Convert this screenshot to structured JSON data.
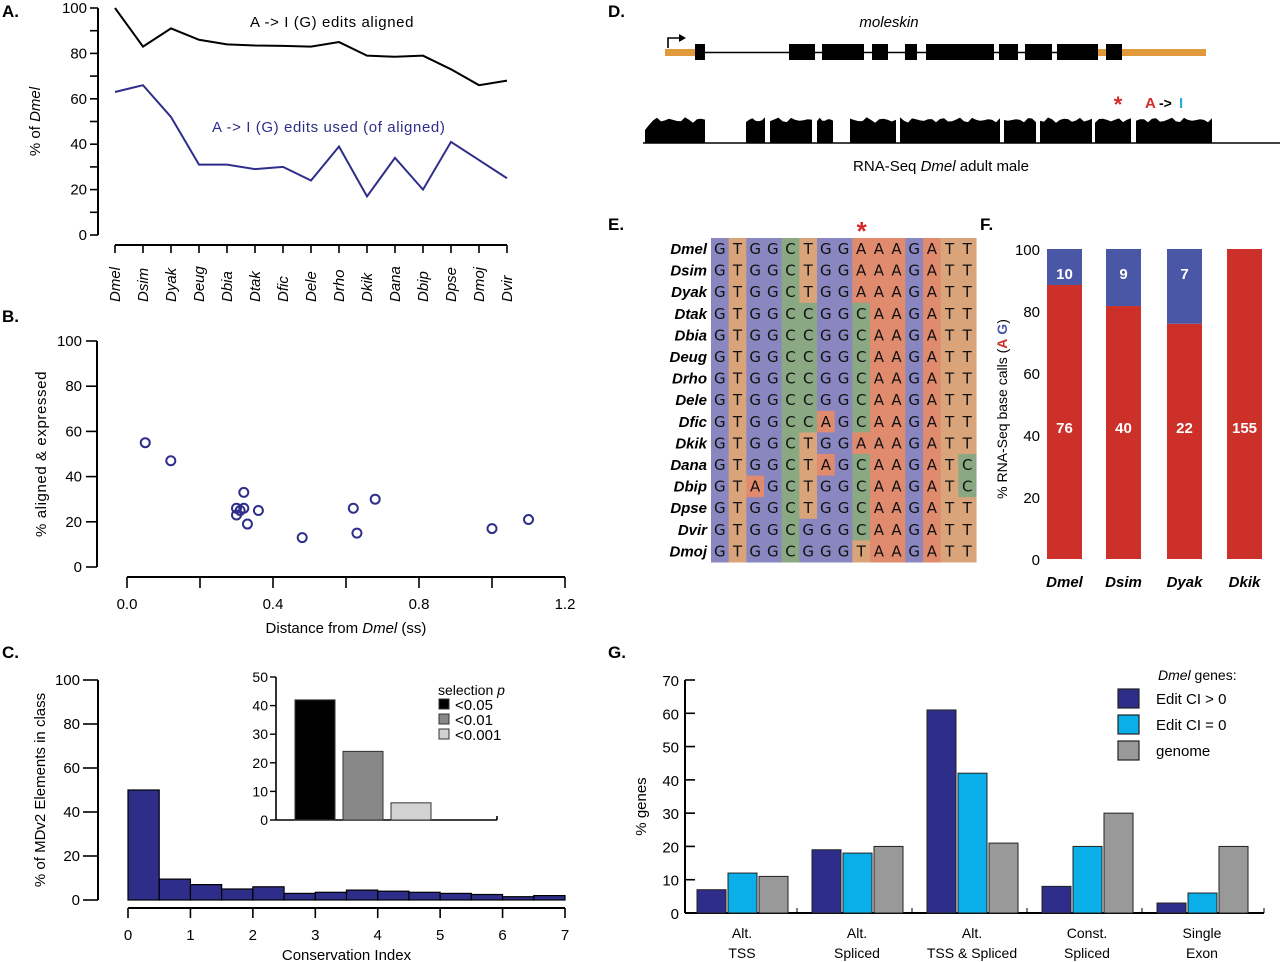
{
  "panels": {
    "A": {
      "label": "A."
    },
    "B": {
      "label": "B."
    },
    "C": {
      "label": "C."
    },
    "D": {
      "label": "D."
    },
    "E": {
      "label": "E."
    },
    "F": {
      "label": "F."
    },
    "G": {
      "label": "G."
    }
  },
  "chart_data": [
    {
      "id": "A",
      "type": "line",
      "title": "",
      "xlabel": "",
      "ylabel_prefix": "% of ",
      "ylabel_italic": "Dmel",
      "ylim": [
        0,
        100
      ],
      "yticks": [
        0,
        20,
        40,
        60,
        80,
        100
      ],
      "categories": [
        "Dmel",
        "Dsim",
        "Dyak",
        "Deug",
        "Dbia",
        "Dtak",
        "Dfic",
        "Dele",
        "Drho",
        "Dkik",
        "Dana",
        "Dbip",
        "Dpse",
        "Dmoj",
        "Dvir"
      ],
      "series": [
        {
          "name": "A -> I (G) edits aligned",
          "color": "#000000",
          "values": [
            100,
            83,
            91,
            86,
            84,
            83.5,
            83.3,
            83,
            85,
            79,
            78.5,
            79,
            73,
            66,
            68
          ]
        },
        {
          "name": "A -> I (G) edits used (of aligned)",
          "color": "#2e2e8a",
          "values": [
            63,
            66,
            52,
            31,
            31,
            29,
            30,
            24,
            39,
            17,
            34,
            20,
            41,
            33,
            25
          ]
        }
      ]
    },
    {
      "id": "B",
      "type": "scatter",
      "xlabel_prefix": "Distance from ",
      "xlabel_italic": "Dmel",
      "xlabel_suffix": " (ss)",
      "ylabel": "% aligned & expressed",
      "xlim": [
        0,
        1.2
      ],
      "ylim": [
        0,
        100
      ],
      "xticks": [
        "0.0",
        "0.4",
        "0.8",
        "1.2"
      ],
      "xtick_values": [
        0,
        0.4,
        0.8,
        1.2
      ],
      "yticks": [
        0,
        20,
        40,
        60,
        80,
        100
      ],
      "points": [
        {
          "x": 0.05,
          "y": 55
        },
        {
          "x": 0.12,
          "y": 47
        },
        {
          "x": 0.3,
          "y": 23
        },
        {
          "x": 0.3,
          "y": 26
        },
        {
          "x": 0.31,
          "y": 25
        },
        {
          "x": 0.32,
          "y": 26
        },
        {
          "x": 0.32,
          "y": 33
        },
        {
          "x": 0.33,
          "y": 19
        },
        {
          "x": 0.36,
          "y": 25
        },
        {
          "x": 0.48,
          "y": 13
        },
        {
          "x": 0.62,
          "y": 26
        },
        {
          "x": 0.63,
          "y": 15
        },
        {
          "x": 0.68,
          "y": 30
        },
        {
          "x": 1.0,
          "y": 17
        },
        {
          "x": 1.1,
          "y": 21
        }
      ],
      "color": "#2e2e8a"
    },
    {
      "id": "C",
      "type": "bar",
      "xlabel": "Conservation Index",
      "ylabel": "% of MDv2 Elements in class",
      "xlim": [
        0,
        7
      ],
      "ylim": [
        0,
        100
      ],
      "xticks": [
        0,
        1,
        2,
        3,
        4,
        5,
        6,
        7
      ],
      "yticks": [
        0,
        20,
        40,
        60,
        80,
        100
      ],
      "bin_width": 0.5,
      "bins_start": [
        0,
        0.5,
        1,
        1.5,
        2,
        2.5,
        3,
        3.5,
        4,
        4.5,
        5,
        5.5,
        6,
        6.5
      ],
      "values": [
        50,
        9.5,
        7,
        5,
        6,
        3,
        3.5,
        4.5,
        4,
        3.5,
        3,
        2.5,
        1.5,
        2
      ],
      "color": "#2e2e8a",
      "inset": {
        "type": "bar",
        "ylim": [
          0,
          50
        ],
        "yticks": [
          0,
          10,
          20,
          30,
          40,
          50
        ],
        "legend_title": "selection",
        "legend_title_italic": "p",
        "series": [
          {
            "name": "<0.05",
            "value": 42,
            "color": "#000000"
          },
          {
            "name": "<0.01",
            "value": 24,
            "color": "#888888"
          },
          {
            "name": "<0.001",
            "value": 6,
            "color": "#d2d2d2"
          }
        ]
      }
    },
    {
      "id": "F",
      "type": "bar",
      "stacked": true,
      "ylabel_prefix": "% RNA-Seq base calls (",
      "ylabel_A": "A",
      "ylabel_G": "G",
      "ylabel_suffix": ")",
      "ylim": [
        0,
        100
      ],
      "yticks": [
        0,
        20,
        40,
        60,
        80,
        100
      ],
      "categories": [
        "Dmel",
        "Dsim",
        "Dyak",
        "Dkik"
      ],
      "series": [
        {
          "name": "A",
          "color": "#cc3028",
          "counts": [
            76,
            40,
            22,
            155
          ],
          "percent": [
            88.4,
            81.6,
            75.9,
            100
          ]
        },
        {
          "name": "G",
          "color": "#4a56a6",
          "counts": [
            10,
            9,
            7,
            0
          ],
          "percent": [
            11.6,
            18.4,
            24.1,
            0
          ]
        }
      ],
      "labels_A": [
        "76",
        "40",
        "22",
        "155"
      ],
      "labels_G": [
        "10",
        "9",
        "7",
        ""
      ]
    },
    {
      "id": "G",
      "type": "bar",
      "ylabel": "% genes",
      "ylim": [
        0,
        70
      ],
      "yticks": [
        0,
        10,
        20,
        30,
        40,
        50,
        60,
        70
      ],
      "categories": [
        [
          "Alt.",
          "TSS"
        ],
        [
          "Alt.",
          "Spliced"
        ],
        [
          "Alt.",
          "TSS & Spliced"
        ],
        [
          "Const.",
          "Spliced"
        ],
        [
          "Single",
          "Exon"
        ]
      ],
      "legend_title_italic": "Dmel",
      "legend_title_suffix": " genes:",
      "series": [
        {
          "name": "Edit CI > 0",
          "color": "#2e2e8a",
          "values": [
            7,
            19,
            61,
            8,
            3
          ]
        },
        {
          "name": "Edit CI = 0",
          "color": "#0aaee8",
          "values": [
            12,
            18,
            42,
            20,
            6
          ]
        },
        {
          "name": "genome",
          "color": "#999999",
          "values": [
            11,
            20,
            21,
            30,
            20
          ]
        }
      ]
    }
  ],
  "gene_track": {
    "gene_name": "moleskin",
    "track_label_prefix": "RNA-Seq ",
    "track_label_italic": "Dmel",
    "track_label_suffix": " adult male",
    "edit_label_A": "A",
    "edit_arrow": "->",
    "edit_label_I": "I",
    "edit_marker": "*",
    "utr_color": "#e09a3c",
    "edit_A_color": "#d42a2a",
    "edit_I_color": "#2aa8e0",
    "exon_count": 10
  },
  "alignment": {
    "edit_marker": "*",
    "edit_column": 9,
    "base_colors": {
      "G": "#8a87c0",
      "T": "#d9a47a",
      "C": "#8aa882",
      "A": "#e08b6e"
    },
    "rows": [
      {
        "species": "Dmel",
        "seq": "GTGGCTGGAAAGATT"
      },
      {
        "species": "Dsim",
        "seq": "GTGGCTGGAAAGATT"
      },
      {
        "species": "Dyak",
        "seq": "GTGGCTGGAAAGATT"
      },
      {
        "species": "Dtak",
        "seq": "GTGGCCGGCAAGATT"
      },
      {
        "species": "Dbia",
        "seq": "GTGGCCGGCAAGATT"
      },
      {
        "species": "Deug",
        "seq": "GTGGCCGGCAAGATT"
      },
      {
        "species": "Drho",
        "seq": "GTGGCCGGCAAGATT"
      },
      {
        "species": "Dele",
        "seq": "GTGGCCGGCAAGATT"
      },
      {
        "species": "Dfic",
        "seq": "GTGGCCAGCAAGATT"
      },
      {
        "species": "Dkik",
        "seq": "GTGGCTGGAAAGATT"
      },
      {
        "species": "Dana",
        "seq": "GTGGCTAGCAAGATC"
      },
      {
        "species": "Dbip",
        "seq": "GTAGCTGGCAAGATC"
      },
      {
        "species": "Dpse",
        "seq": "GTGGCTGGCAAGATT"
      },
      {
        "species": "Dvir",
        "seq": "GTGGCGGGCAAGATT"
      },
      {
        "species": "Dmoj",
        "seq": "GTGGCGGGTAAGATT"
      }
    ]
  }
}
